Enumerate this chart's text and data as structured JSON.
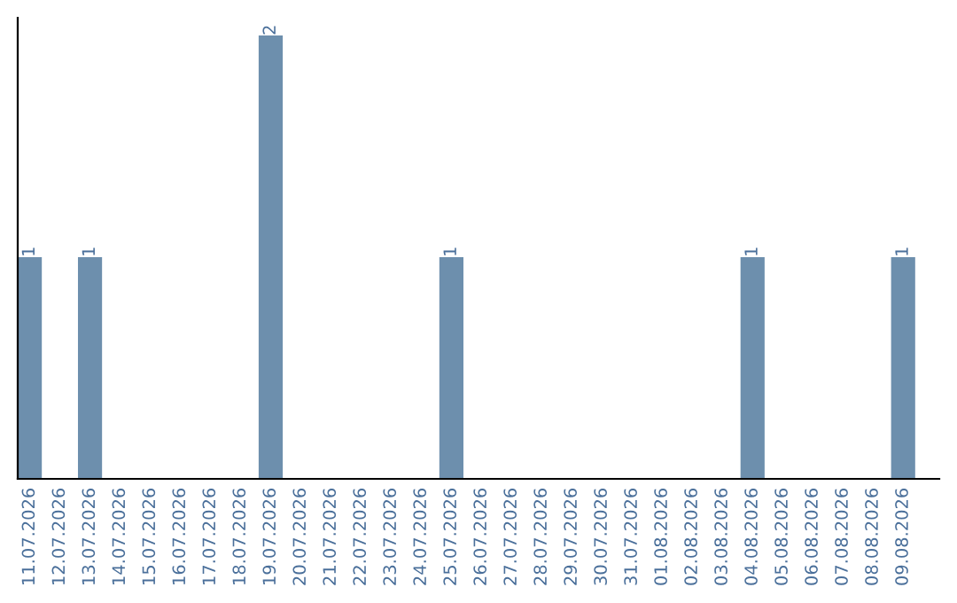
{
  "chart_data": {
    "type": "bar",
    "categories": [
      "11.07.2026",
      "12.07.2026",
      "13.07.2026",
      "14.07.2026",
      "15.07.2026",
      "16.07.2026",
      "17.07.2026",
      "18.07.2026",
      "19.07.2026",
      "20.07.2026",
      "21.07.2026",
      "22.07.2026",
      "23.07.2026",
      "24.07.2026",
      "25.07.2026",
      "26.07.2026",
      "27.07.2026",
      "28.07.2026",
      "29.07.2026",
      "30.07.2026",
      "31.07.2026",
      "01.08.2026",
      "02.08.2026",
      "03.08.2026",
      "04.08.2026",
      "05.08.2026",
      "06.08.2026",
      "07.08.2026",
      "08.08.2026",
      "09.08.2026"
    ],
    "values": [
      1,
      0,
      1,
      0,
      0,
      0,
      0,
      0,
      2,
      0,
      0,
      0,
      0,
      0,
      1,
      0,
      0,
      0,
      0,
      0,
      0,
      0,
      0,
      0,
      1,
      0,
      0,
      0,
      0,
      1
    ],
    "value_labels": [
      "1",
      null,
      "1",
      null,
      null,
      null,
      null,
      null,
      "2",
      null,
      null,
      null,
      null,
      null,
      "1",
      null,
      null,
      null,
      null,
      null,
      null,
      null,
      null,
      null,
      "1",
      null,
      null,
      null,
      null,
      "1"
    ],
    "color": "#6d8fad",
    "tick_labels": "x",
    "grid": false,
    "legend": false
  }
}
